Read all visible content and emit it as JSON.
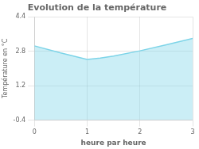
{
  "chart_data": {
    "type": "area",
    "title": "Evolution de la température",
    "xlabel": "heure par heure",
    "ylabel": "Température en °C",
    "x": [
      0,
      0.5,
      1,
      1.25,
      1.5,
      2,
      2.5,
      3
    ],
    "values": [
      3.05,
      2.72,
      2.42,
      2.48,
      2.58,
      2.82,
      3.1,
      3.4
    ],
    "color": "#7dd4e8",
    "xlim": [
      0,
      3
    ],
    "ylim": [
      -0.4,
      4.4
    ],
    "xticks": [
      0,
      1,
      2,
      3
    ],
    "yticks": [
      -0.4,
      1.2,
      2.8,
      4.4
    ],
    "grid": true
  }
}
